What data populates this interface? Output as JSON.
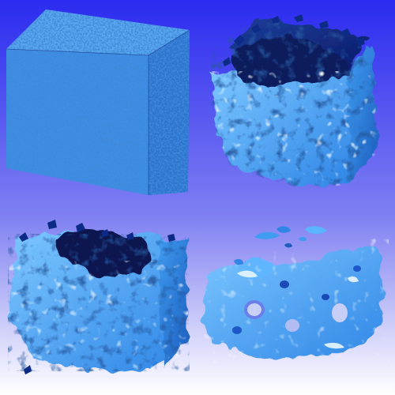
{
  "image": {
    "description_free": true,
    "background": {
      "top_color": "#2b2bf0",
      "middle_color": "#8080f2",
      "bottom_color": "#ffffff"
    },
    "palette": {
      "deep_blue": "#0a1a6a",
      "mid_blue": "#2f86e6",
      "light_blue": "#5ab4ff",
      "highlight": "#e8f6ff",
      "shadow": "#061238"
    },
    "panels": [
      {
        "id": "panel-1",
        "stage": "dense-noise-cube"
      },
      {
        "id": "panel-2",
        "stage": "coarsened-cube"
      },
      {
        "id": "panel-3",
        "stage": "further-coarsened-cube"
      },
      {
        "id": "panel-4",
        "stage": "porous-slab"
      }
    ]
  }
}
